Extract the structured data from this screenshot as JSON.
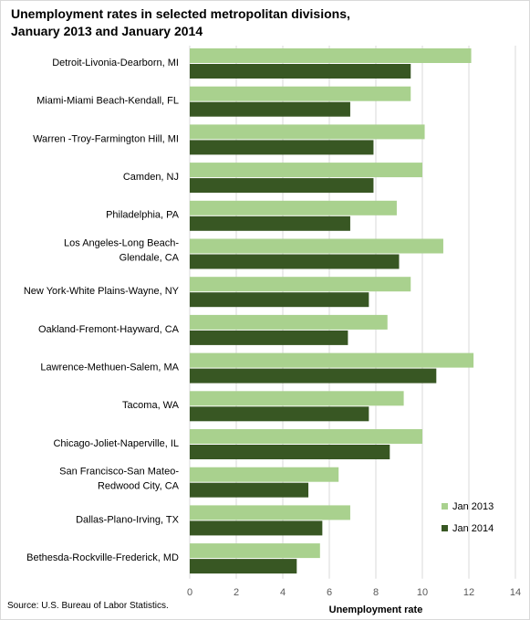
{
  "title": "Unemployment rates in selected metropolitan divisions,\nJanuary 2013 and January 2014",
  "source": "Source: U.S. Bureau of Labor Statistics.",
  "chart_data": {
    "type": "bar",
    "orientation": "horizontal",
    "title": "Unemployment rates in selected metropolitan divisions, January 2013 and January 2014",
    "xlabel": "Unemployment rate",
    "ylabel": "",
    "xlim": [
      0,
      14
    ],
    "xticks": [
      0,
      2,
      4,
      6,
      8,
      10,
      12,
      14
    ],
    "grid": true,
    "legend_position": "bottom-right",
    "categories": [
      "Detroit-Livonia-Dearborn, MI",
      "Miami-Miami Beach-Kendall, FL",
      "Warren -Troy-Farmington Hill, MI",
      "Camden, NJ",
      "Philadelphia, PA",
      "Los Angeles-Long Beach-\nGlendale, CA",
      "New York-White Plains-Wayne, NY",
      "Oakland-Fremont-Hayward, CA",
      "Lawrence-Methuen-Salem, MA",
      "Tacoma, WA",
      "Chicago-Joliet-Naperville, IL",
      "San Francisco-San Mateo-\nRedwood City, CA",
      "Dallas-Plano-Irving, TX",
      "Bethesda-Rockville-Frederick, MD"
    ],
    "series": [
      {
        "name": "Jan 2013",
        "color": "#a9d18e",
        "values": [
          12.1,
          9.5,
          10.1,
          10.0,
          8.9,
          10.9,
          9.5,
          8.5,
          12.2,
          9.2,
          10.0,
          6.4,
          6.9,
          5.6
        ]
      },
      {
        "name": "Jan 2014",
        "color": "#385723",
        "values": [
          9.5,
          6.9,
          7.9,
          7.9,
          6.9,
          9.0,
          7.7,
          6.8,
          10.6,
          7.7,
          8.6,
          5.1,
          5.7,
          4.6
        ]
      }
    ]
  }
}
